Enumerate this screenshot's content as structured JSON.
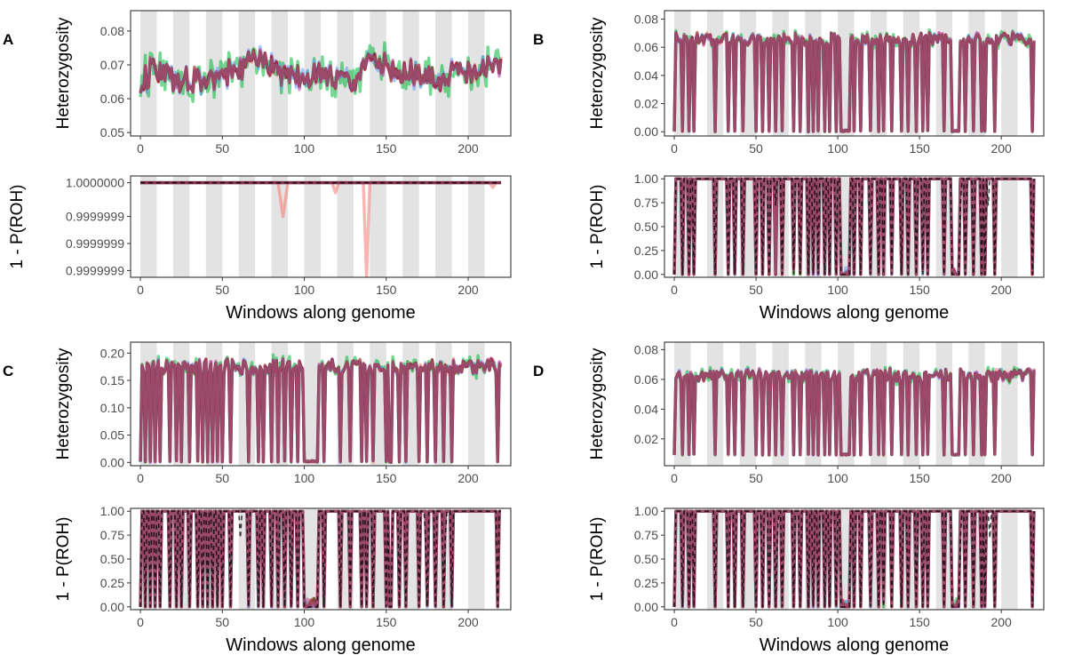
{
  "figure": {
    "panels": [
      {
        "letter": "A"
      },
      {
        "letter": "B"
      },
      {
        "letter": "C"
      },
      {
        "letter": "D"
      }
    ]
  },
  "colors": {
    "band": "#e3e3e3",
    "frame": "#333333",
    "tick_text": "#4d4d4d",
    "series": [
      "#f8766d",
      "#00ba38",
      "#619cff",
      "#b8389a",
      "#7c0000"
    ],
    "series_opacity": 0.55,
    "dashed": "#000000",
    "mean_line": "#9b4a6a"
  },
  "chart_data": [
    {
      "panel": "A",
      "position": "top",
      "type": "line",
      "xlabel": "",
      "ylabel": "Heterozygosity",
      "xlim": [
        -6,
        226
      ],
      "ylim": [
        0.049,
        0.086
      ],
      "xticks": [
        0,
        50,
        100,
        150,
        200
      ],
      "xtick_labels": [
        "0",
        "50",
        "100",
        "150",
        "200"
      ],
      "yticks": [
        0.05,
        0.06,
        0.07,
        0.08
      ],
      "ytick_labels": [
        "0.05",
        "0.06",
        "0.07",
        "0.08"
      ],
      "bands": [
        [
          0,
          10
        ],
        [
          20,
          30
        ],
        [
          40,
          50
        ],
        [
          60,
          70
        ],
        [
          80,
          90
        ],
        [
          100,
          110
        ],
        [
          120,
          130
        ],
        [
          140,
          150
        ],
        [
          160,
          170
        ],
        [
          180,
          190
        ],
        [
          200,
          210
        ]
      ],
      "grid": false,
      "legend": "none",
      "profile": {
        "kind": "wiggle",
        "n": 221,
        "base": 0.0665,
        "breakpoints": [
          [
            0,
            0.064
          ],
          [
            8,
            0.069
          ],
          [
            20,
            0.066
          ],
          [
            35,
            0.065
          ],
          [
            55,
            0.068
          ],
          [
            75,
            0.072
          ],
          [
            90,
            0.066
          ],
          [
            110,
            0.067
          ],
          [
            130,
            0.065
          ],
          [
            140,
            0.071
          ],
          [
            160,
            0.068
          ],
          [
            180,
            0.066
          ],
          [
            200,
            0.068
          ],
          [
            220,
            0.07
          ]
        ],
        "amplitude": 0.0035,
        "series_spread": [
          0,
          0.004,
          0.0015,
          0.001,
          0.0008
        ]
      }
    },
    {
      "panel": "A",
      "position": "bottom",
      "type": "line",
      "xlabel": "Windows along genome",
      "ylabel": "1 - P(ROH)",
      "xlim": [
        -6,
        226
      ],
      "ylim": [
        0.99999986,
        1.00000001
      ],
      "xticks": [
        0,
        50,
        100,
        150,
        200
      ],
      "xtick_labels": [
        "0",
        "50",
        "100",
        "150",
        "200"
      ],
      "yticks": [
        0.99999987,
        0.99999991,
        0.99999995,
        1.0
      ],
      "ytick_labels": [
        "0.9999999",
        "0.9999999",
        "0.9999999",
        "1.0000000"
      ],
      "bands": [
        [
          0,
          10
        ],
        [
          20,
          30
        ],
        [
          40,
          50
        ],
        [
          60,
          70
        ],
        [
          80,
          90
        ],
        [
          100,
          110
        ],
        [
          120,
          130
        ],
        [
          140,
          150
        ],
        [
          160,
          170
        ],
        [
          180,
          190
        ],
        [
          200,
          210
        ]
      ],
      "grid": false,
      "legend": "none",
      "profile": {
        "kind": "flat",
        "n": 221,
        "base": 1.0,
        "dips": [
          [
            87,
            0.99999995,
            3
          ],
          [
            119,
            0.999999985,
            2
          ],
          [
            138,
            0.99999986,
            2
          ],
          [
            215,
            0.999999993,
            2
          ]
        ]
      }
    },
    {
      "panel": "B",
      "position": "top",
      "type": "line",
      "xlabel": "",
      "ylabel": "Heterozygosity",
      "xlim": [
        -6,
        226
      ],
      "ylim": [
        -0.003,
        0.086
      ],
      "xticks": [
        0,
        50,
        100,
        150,
        200
      ],
      "xtick_labels": [
        "0",
        "50",
        "100",
        "150",
        "200"
      ],
      "yticks": [
        0.0,
        0.02,
        0.04,
        0.06,
        0.08
      ],
      "ytick_labels": [
        "0.00",
        "0.02",
        "0.04",
        "0.06",
        "0.08"
      ],
      "bands": [
        [
          0,
          10
        ],
        [
          20,
          30
        ],
        [
          40,
          50
        ],
        [
          60,
          70
        ],
        [
          80,
          90
        ],
        [
          100,
          110
        ],
        [
          120,
          130
        ],
        [
          140,
          150
        ],
        [
          160,
          170
        ],
        [
          180,
          190
        ],
        [
          200,
          210
        ]
      ],
      "grid": false,
      "legend": "none",
      "profile": {
        "kind": "roh",
        "n": 221,
        "base": 0.066,
        "amplitude": 0.004,
        "floor": 0.0,
        "dips": [
          0,
          5,
          9,
          12,
          25,
          33,
          37,
          42,
          50,
          54,
          58,
          62,
          66,
          73,
          77,
          82,
          85,
          88,
          92,
          95,
          99,
          102,
          103,
          104,
          105,
          106,
          107,
          110,
          114,
          120,
          125,
          128,
          133,
          139,
          143,
          148,
          152,
          155,
          165,
          170,
          171,
          172,
          173,
          174,
          178,
          183,
          188,
          190,
          196,
          219
        ]
      }
    },
    {
      "panel": "B",
      "position": "bottom",
      "type": "line",
      "xlabel": "Windows along genome",
      "ylabel": "1 - P(ROH)",
      "xlim": [
        -6,
        226
      ],
      "ylim": [
        -0.03,
        1.03
      ],
      "xticks": [
        0,
        50,
        100,
        150,
        200
      ],
      "xtick_labels": [
        "0",
        "50",
        "100",
        "150",
        "200"
      ],
      "yticks": [
        0.0,
        0.25,
        0.5,
        0.75,
        1.0
      ],
      "ytick_labels": [
        "0.00",
        "0.25",
        "0.50",
        "0.75",
        "1.00"
      ],
      "bands": [
        [
          0,
          10
        ],
        [
          20,
          30
        ],
        [
          40,
          50
        ],
        [
          60,
          70
        ],
        [
          80,
          90
        ],
        [
          100,
          110
        ],
        [
          120,
          130
        ],
        [
          140,
          150
        ],
        [
          160,
          170
        ],
        [
          180,
          190
        ],
        [
          200,
          210
        ]
      ],
      "grid": false,
      "legend": "none",
      "profile": {
        "kind": "prob",
        "n": 221,
        "base": 1.0,
        "floor": 0.0,
        "dips": [
          0,
          5,
          9,
          12,
          25,
          33,
          37,
          42,
          50,
          54,
          58,
          62,
          66,
          73,
          77,
          82,
          85,
          88,
          92,
          95,
          99,
          102,
          103,
          104,
          105,
          106,
          107,
          110,
          114,
          120,
          125,
          128,
          133,
          139,
          143,
          148,
          152,
          155,
          165,
          170,
          171,
          172,
          173,
          174,
          178,
          183,
          188,
          190,
          196,
          219
        ],
        "dashed_dips": [
          62,
          175,
          192
        ]
      }
    },
    {
      "panel": "C",
      "position": "top",
      "type": "line",
      "xlabel": "",
      "ylabel": "Heterozygosity",
      "xlim": [
        -6,
        226
      ],
      "ylim": [
        -0.006,
        0.22
      ],
      "xticks": [
        0,
        50,
        100,
        150,
        200
      ],
      "xtick_labels": [
        "0",
        "50",
        "100",
        "150",
        "200"
      ],
      "yticks": [
        0.0,
        0.05,
        0.1,
        0.15,
        0.2
      ],
      "ytick_labels": [
        "0.00",
        "0.05",
        "0.10",
        "0.15",
        "0.20"
      ],
      "bands": [
        [
          0,
          10
        ],
        [
          20,
          30
        ],
        [
          40,
          50
        ],
        [
          60,
          70
        ],
        [
          80,
          90
        ],
        [
          100,
          110
        ],
        [
          120,
          130
        ],
        [
          140,
          150
        ],
        [
          160,
          170
        ],
        [
          180,
          190
        ],
        [
          200,
          210
        ]
      ],
      "grid": false,
      "legend": "none",
      "profile": {
        "kind": "roh",
        "n": 221,
        "base": 0.175,
        "amplitude": 0.012,
        "floor": 0.0,
        "dips": [
          0,
          3,
          6,
          9,
          12,
          18,
          22,
          25,
          30,
          35,
          38,
          41,
          44,
          47,
          50,
          55,
          66,
          72,
          75,
          80,
          84,
          88,
          92,
          96,
          100,
          101,
          102,
          103,
          104,
          105,
          106,
          107,
          108,
          112,
          122,
          128,
          135,
          138,
          142,
          150,
          152,
          153,
          158,
          162,
          170,
          175,
          180,
          185,
          190,
          218
        ]
      }
    },
    {
      "panel": "C",
      "position": "bottom",
      "type": "line",
      "xlabel": "Windows along genome",
      "ylabel": "1 - P(ROH)",
      "xlim": [
        -6,
        226
      ],
      "ylim": [
        -0.03,
        1.03
      ],
      "xticks": [
        0,
        50,
        100,
        150,
        200
      ],
      "xtick_labels": [
        "0",
        "50",
        "100",
        "150",
        "200"
      ],
      "yticks": [
        0.0,
        0.25,
        0.5,
        0.75,
        1.0
      ],
      "ytick_labels": [
        "0.00",
        "0.25",
        "0.50",
        "0.75",
        "1.00"
      ],
      "bands": [
        [
          0,
          10
        ],
        [
          20,
          30
        ],
        [
          40,
          50
        ],
        [
          60,
          70
        ],
        [
          80,
          90
        ],
        [
          100,
          110
        ],
        [
          120,
          130
        ],
        [
          140,
          150
        ],
        [
          160,
          170
        ],
        [
          180,
          190
        ],
        [
          200,
          210
        ]
      ],
      "grid": false,
      "legend": "none",
      "profile": {
        "kind": "prob",
        "n": 221,
        "base": 1.0,
        "floor": 0.0,
        "dips": [
          0,
          3,
          6,
          9,
          12,
          18,
          22,
          25,
          30,
          35,
          38,
          41,
          44,
          47,
          50,
          55,
          66,
          72,
          75,
          80,
          84,
          88,
          92,
          96,
          100,
          101,
          102,
          103,
          104,
          105,
          106,
          107,
          108,
          112,
          122,
          128,
          135,
          138,
          142,
          150,
          152,
          153,
          158,
          162,
          170,
          175,
          180,
          185,
          190,
          218
        ],
        "dashed_dips": [
          61,
          174,
          186
        ]
      }
    },
    {
      "panel": "D",
      "position": "top",
      "type": "line",
      "xlabel": "",
      "ylabel": "Heterozygosity",
      "xlim": [
        -6,
        226
      ],
      "ylim": [
        0.002,
        0.085
      ],
      "xticks": [
        0,
        50,
        100,
        150,
        200
      ],
      "xtick_labels": [
        "0",
        "50",
        "100",
        "150",
        "200"
      ],
      "yticks": [
        0.02,
        0.04,
        0.06,
        0.08
      ],
      "ytick_labels": [
        "0.02",
        "0.04",
        "0.06",
        "0.08"
      ],
      "bands": [
        [
          0,
          10
        ],
        [
          20,
          30
        ],
        [
          40,
          50
        ],
        [
          60,
          70
        ],
        [
          80,
          90
        ],
        [
          100,
          110
        ],
        [
          120,
          130
        ],
        [
          140,
          150
        ],
        [
          160,
          170
        ],
        [
          180,
          190
        ],
        [
          200,
          210
        ]
      ],
      "grid": false,
      "legend": "none",
      "profile": {
        "kind": "roh",
        "n": 221,
        "base": 0.063,
        "amplitude": 0.0035,
        "floor": 0.009,
        "dips": [
          0,
          5,
          9,
          12,
          25,
          33,
          37,
          42,
          50,
          54,
          58,
          62,
          66,
          73,
          77,
          82,
          85,
          88,
          92,
          95,
          99,
          102,
          103,
          104,
          105,
          106,
          107,
          110,
          114,
          120,
          125,
          128,
          133,
          139,
          143,
          148,
          152,
          155,
          165,
          170,
          171,
          172,
          173,
          174,
          178,
          183,
          188,
          190,
          196,
          219
        ]
      }
    },
    {
      "panel": "D",
      "position": "bottom",
      "type": "line",
      "xlabel": "Windows along genome",
      "ylabel": "1 - P(ROH)",
      "xlim": [
        -6,
        226
      ],
      "ylim": [
        -0.03,
        1.03
      ],
      "xticks": [
        0,
        50,
        100,
        150,
        200
      ],
      "xtick_labels": [
        "0",
        "50",
        "100",
        "150",
        "200"
      ],
      "yticks": [
        0.0,
        0.25,
        0.5,
        0.75,
        1.0
      ],
      "ytick_labels": [
        "0.00",
        "0.25",
        "0.50",
        "0.75",
        "1.00"
      ],
      "bands": [
        [
          0,
          10
        ],
        [
          20,
          30
        ],
        [
          40,
          50
        ],
        [
          60,
          70
        ],
        [
          80,
          90
        ],
        [
          100,
          110
        ],
        [
          120,
          130
        ],
        [
          140,
          150
        ],
        [
          160,
          170
        ],
        [
          180,
          190
        ],
        [
          200,
          210
        ]
      ],
      "grid": false,
      "legend": "none",
      "profile": {
        "kind": "prob",
        "n": 221,
        "base": 1.0,
        "floor": 0.0,
        "dips": [
          0,
          5,
          9,
          12,
          25,
          33,
          37,
          42,
          50,
          54,
          58,
          62,
          66,
          73,
          77,
          82,
          85,
          88,
          92,
          95,
          99,
          102,
          103,
          104,
          105,
          106,
          107,
          110,
          114,
          120,
          125,
          128,
          133,
          139,
          143,
          148,
          152,
          155,
          165,
          170,
          171,
          172,
          173,
          174,
          178,
          183,
          188,
          190,
          196,
          219
        ],
        "dashed_dips": [
          63,
          175,
          193
        ]
      }
    }
  ]
}
